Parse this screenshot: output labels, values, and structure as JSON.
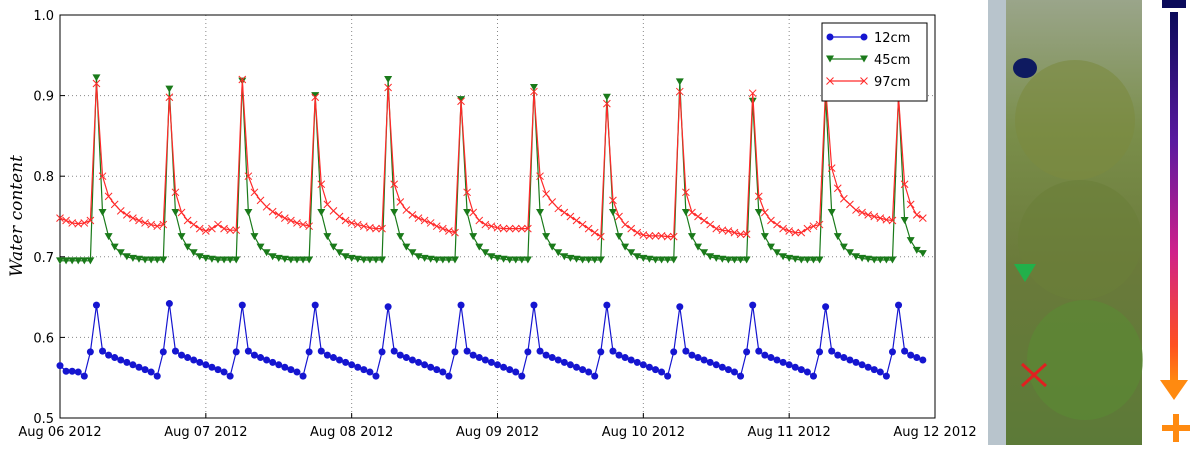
{
  "chart_data": {
    "type": "line",
    "ylabel": "Water content",
    "x": [
      0,
      1,
      2,
      3,
      4,
      5,
      6,
      7,
      8,
      9,
      10,
      11,
      12,
      13,
      14,
      15,
      16,
      17,
      18,
      19,
      20,
      21,
      22,
      23,
      24,
      25,
      26,
      27,
      28,
      29,
      30,
      31,
      32,
      33,
      34,
      35,
      36,
      37,
      38,
      39,
      40,
      41,
      42,
      43,
      44,
      45,
      46,
      47,
      48,
      49,
      50,
      51,
      52,
      53,
      54,
      55,
      56,
      57,
      58,
      59,
      60,
      61,
      62,
      63,
      64,
      65,
      66,
      67,
      68,
      69,
      70,
      71,
      72,
      73,
      74,
      75,
      76,
      77,
      78,
      79,
      80,
      81,
      82,
      83,
      84,
      85,
      86,
      87,
      88,
      89,
      90,
      91,
      92,
      93,
      94,
      95,
      96,
      97,
      98,
      99,
      100,
      101,
      102,
      103,
      104,
      105,
      106,
      107,
      108,
      109,
      110,
      111,
      112,
      113,
      114,
      115,
      116,
      117,
      118,
      119,
      120,
      121,
      122,
      123,
      124,
      125,
      126,
      127,
      128,
      129,
      130,
      131,
      132,
      133,
      134,
      135,
      136,
      137,
      138,
      139,
      140,
      141,
      142
    ],
    "xlim": [
      0,
      144
    ],
    "xticks": [
      {
        "value": 0,
        "label": "Aug 06 2012"
      },
      {
        "value": 24,
        "label": "Aug 07 2012"
      },
      {
        "value": 48,
        "label": "Aug 08 2012"
      },
      {
        "value": 72,
        "label": "Aug 09 2012"
      },
      {
        "value": 96,
        "label": "Aug 10 2012"
      },
      {
        "value": 120,
        "label": "Aug 11 2012"
      },
      {
        "value": 144,
        "label": "Aug 12 2012"
      }
    ],
    "ylim": [
      0.5,
      1.0
    ],
    "yticks": [
      0.5,
      0.6,
      0.7,
      0.8,
      0.9,
      {
        "value": 1.0,
        "label": "1.0"
      }
    ],
    "grid": true,
    "legend": "upper right",
    "series": [
      {
        "name": "12cm",
        "color": "#1515d0",
        "marker": "circle",
        "values": [
          0.565,
          0.558,
          0.558,
          0.557,
          0.552,
          0.582,
          0.64,
          0.583,
          0.578,
          0.575,
          0.572,
          0.569,
          0.566,
          0.563,
          0.56,
          0.557,
          0.552,
          0.582,
          0.642,
          0.583,
          0.578,
          0.575,
          0.572,
          0.569,
          0.566,
          0.563,
          0.56,
          0.557,
          0.552,
          0.582,
          0.64,
          0.583,
          0.578,
          0.575,
          0.572,
          0.569,
          0.566,
          0.563,
          0.56,
          0.557,
          0.552,
          0.582,
          0.64,
          0.583,
          0.578,
          0.575,
          0.572,
          0.569,
          0.566,
          0.563,
          0.56,
          0.557,
          0.552,
          0.582,
          0.638,
          0.583,
          0.578,
          0.575,
          0.572,
          0.569,
          0.566,
          0.563,
          0.56,
          0.557,
          0.552,
          0.582,
          0.64,
          0.583,
          0.578,
          0.575,
          0.572,
          0.569,
          0.566,
          0.563,
          0.56,
          0.557,
          0.552,
          0.582,
          0.64,
          0.583,
          0.578,
          0.575,
          0.572,
          0.569,
          0.566,
          0.563,
          0.56,
          0.557,
          0.552,
          0.582,
          0.64,
          0.583,
          0.578,
          0.575,
          0.572,
          0.569,
          0.566,
          0.563,
          0.56,
          0.557,
          0.552,
          0.582,
          0.638,
          0.583,
          0.578,
          0.575,
          0.572,
          0.569,
          0.566,
          0.563,
          0.56,
          0.557,
          0.552,
          0.582,
          0.64,
          0.583,
          0.578,
          0.575,
          0.572,
          0.569,
          0.566,
          0.563,
          0.56,
          0.557,
          0.552,
          0.582,
          0.638,
          0.583,
          0.578,
          0.575,
          0.572,
          0.569,
          0.566,
          0.563,
          0.56,
          0.557,
          0.552,
          0.582,
          0.64,
          0.583,
          0.578,
          0.575,
          0.572
        ]
      },
      {
        "name": "45cm",
        "color": "#1a7a1a",
        "marker": "triangle",
        "values": [
          0.695,
          0.695,
          0.695,
          0.695,
          0.695,
          0.695,
          0.922,
          0.755,
          0.725,
          0.712,
          0.705,
          0.7,
          0.698,
          0.697,
          0.696,
          0.696,
          0.696,
          0.696,
          0.908,
          0.755,
          0.725,
          0.712,
          0.705,
          0.7,
          0.698,
          0.697,
          0.696,
          0.696,
          0.696,
          0.696,
          0.918,
          0.755,
          0.725,
          0.712,
          0.705,
          0.7,
          0.698,
          0.697,
          0.696,
          0.696,
          0.696,
          0.696,
          0.9,
          0.755,
          0.725,
          0.712,
          0.705,
          0.7,
          0.698,
          0.697,
          0.696,
          0.696,
          0.696,
          0.696,
          0.92,
          0.755,
          0.725,
          0.712,
          0.705,
          0.7,
          0.698,
          0.697,
          0.696,
          0.696,
          0.696,
          0.696,
          0.895,
          0.755,
          0.725,
          0.712,
          0.705,
          0.7,
          0.698,
          0.697,
          0.696,
          0.696,
          0.696,
          0.696,
          0.91,
          0.755,
          0.725,
          0.712,
          0.705,
          0.7,
          0.698,
          0.697,
          0.696,
          0.696,
          0.696,
          0.696,
          0.898,
          0.755,
          0.725,
          0.712,
          0.705,
          0.7,
          0.698,
          0.697,
          0.696,
          0.696,
          0.696,
          0.696,
          0.917,
          0.755,
          0.725,
          0.712,
          0.705,
          0.7,
          0.698,
          0.697,
          0.696,
          0.696,
          0.696,
          0.696,
          0.893,
          0.755,
          0.725,
          0.712,
          0.705,
          0.7,
          0.698,
          0.697,
          0.696,
          0.696,
          0.696,
          0.696,
          0.9,
          0.755,
          0.725,
          0.712,
          0.705,
          0.7,
          0.698,
          0.697,
          0.696,
          0.696,
          0.696,
          0.696,
          0.9,
          0.745,
          0.72,
          0.708,
          0.704
        ]
      },
      {
        "name": "97cm",
        "color": "#ff2a2a",
        "marker": "x",
        "values": [
          0.748,
          0.745,
          0.742,
          0.741,
          0.742,
          0.745,
          0.915,
          0.8,
          0.775,
          0.765,
          0.757,
          0.752,
          0.748,
          0.745,
          0.742,
          0.74,
          0.738,
          0.74,
          0.898,
          0.78,
          0.755,
          0.745,
          0.74,
          0.735,
          0.732,
          0.735,
          0.74,
          0.735,
          0.733,
          0.733,
          0.92,
          0.8,
          0.78,
          0.77,
          0.762,
          0.756,
          0.752,
          0.748,
          0.745,
          0.742,
          0.74,
          0.738,
          0.898,
          0.79,
          0.765,
          0.757,
          0.75,
          0.745,
          0.742,
          0.74,
          0.738,
          0.736,
          0.735,
          0.735,
          0.91,
          0.79,
          0.768,
          0.758,
          0.752,
          0.748,
          0.745,
          0.742,
          0.738,
          0.735,
          0.732,
          0.73,
          0.893,
          0.78,
          0.755,
          0.745,
          0.74,
          0.738,
          0.736,
          0.735,
          0.735,
          0.735,
          0.735,
          0.735,
          0.905,
          0.8,
          0.778,
          0.768,
          0.76,
          0.755,
          0.75,
          0.745,
          0.74,
          0.735,
          0.73,
          0.725,
          0.89,
          0.77,
          0.75,
          0.74,
          0.735,
          0.73,
          0.727,
          0.726,
          0.726,
          0.726,
          0.725,
          0.725,
          0.905,
          0.78,
          0.755,
          0.75,
          0.745,
          0.74,
          0.735,
          0.733,
          0.732,
          0.73,
          0.728,
          0.728,
          0.903,
          0.775,
          0.755,
          0.745,
          0.74,
          0.735,
          0.732,
          0.73,
          0.73,
          0.735,
          0.738,
          0.74,
          0.91,
          0.81,
          0.785,
          0.772,
          0.765,
          0.758,
          0.755,
          0.752,
          0.75,
          0.748,
          0.746,
          0.745,
          0.898,
          0.79,
          0.765,
          0.752,
          0.748
        ]
      }
    ]
  }
}
